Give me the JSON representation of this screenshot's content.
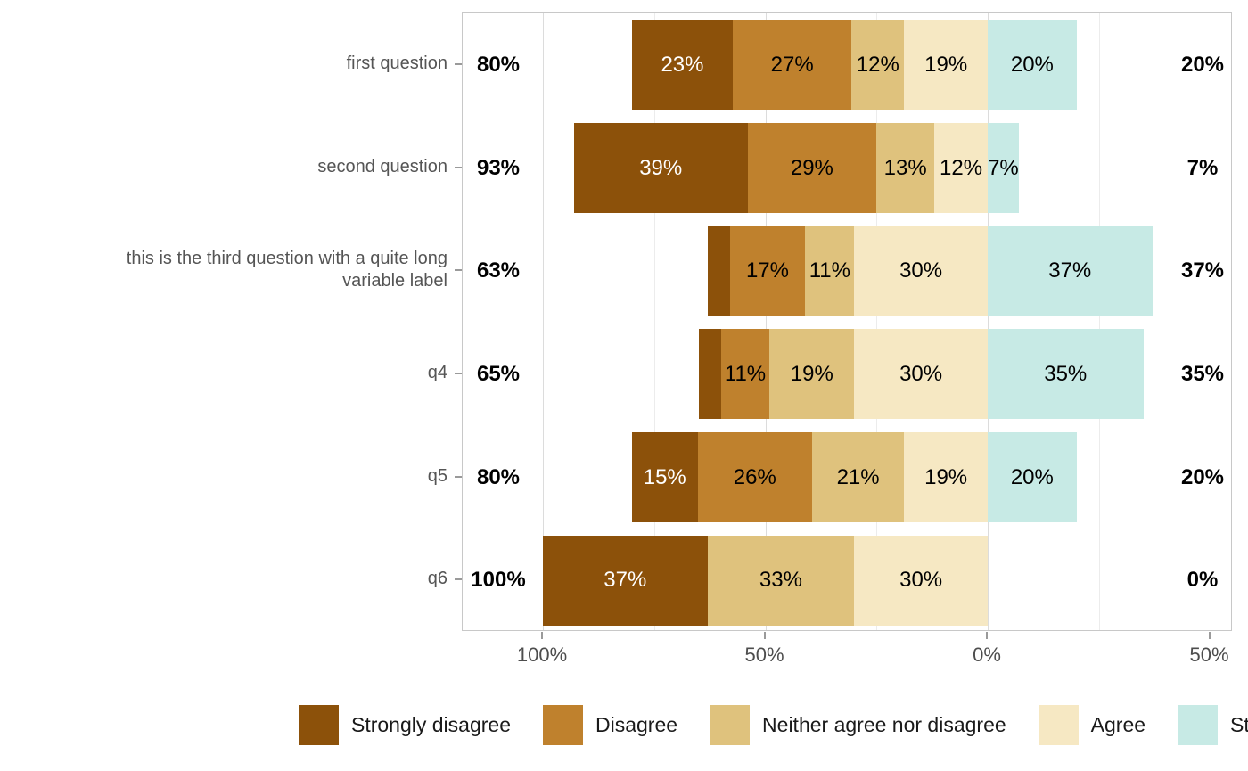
{
  "chart_data": {
    "type": "bar",
    "subtype": "diverging-stacked-likert",
    "title": "",
    "categories": [
      "Strongly disagree",
      "Disagree",
      "Neither agree nor disagree",
      "Agree",
      "Strongly agree"
    ],
    "colors": [
      "#8C510A",
      "#BF812D",
      "#DFC27D",
      "#F6E8C3",
      "#C7EAE5"
    ],
    "label_text_colors": [
      "#ffffff",
      "#000000",
      "#000000",
      "#000000",
      "#000000"
    ],
    "questions": [
      "first question",
      "second question",
      "this is the third question with a quite long\nvariable label",
      "q4",
      "q5",
      "q6"
    ],
    "rows": [
      {
        "question": "first question",
        "left_total": 80,
        "left_total_label": "80%",
        "right_total": 20,
        "right_total_label": "20%",
        "left_segments": [
          {
            "category": "Strongly disagree",
            "value": 23,
            "label": "23%"
          },
          {
            "category": "Disagree",
            "value": 27,
            "label": "27%"
          },
          {
            "category": "Neither agree nor disagree",
            "value": 12,
            "label": "12%"
          },
          {
            "category": "Agree",
            "value": 19,
            "label": "19%"
          }
        ],
        "right_segments": [
          {
            "category": "Strongly agree",
            "value": 20,
            "label": "20%"
          }
        ]
      },
      {
        "question": "second question",
        "left_total": 93,
        "left_total_label": "93%",
        "right_total": 7,
        "right_total_label": "7%",
        "left_segments": [
          {
            "category": "Strongly disagree",
            "value": 39,
            "label": "39%"
          },
          {
            "category": "Disagree",
            "value": 29,
            "label": "29%"
          },
          {
            "category": "Neither agree nor disagree",
            "value": 13,
            "label": "13%"
          },
          {
            "category": "Agree",
            "value": 12,
            "label": "12%"
          }
        ],
        "right_segments": [
          {
            "category": "Strongly agree",
            "value": 7,
            "label": "7%"
          }
        ]
      },
      {
        "question": "this is the third question with a quite long\nvariable label",
        "left_total": 63,
        "left_total_label": "63%",
        "right_total": 37,
        "right_total_label": "37%",
        "left_segments": [
          {
            "category": "Strongly disagree",
            "value": 5,
            "label": ""
          },
          {
            "category": "Disagree",
            "value": 17,
            "label": "17%"
          },
          {
            "category": "Neither agree nor disagree",
            "value": 11,
            "label": "11%"
          },
          {
            "category": "Agree",
            "value": 30,
            "label": "30%"
          }
        ],
        "right_segments": [
          {
            "category": "Strongly agree",
            "value": 37,
            "label": "37%"
          }
        ]
      },
      {
        "question": "q4",
        "left_total": 65,
        "left_total_label": "65%",
        "right_total": 35,
        "right_total_label": "35%",
        "left_segments": [
          {
            "category": "Strongly disagree",
            "value": 5,
            "label": ""
          },
          {
            "category": "Disagree",
            "value": 11,
            "label": "11%"
          },
          {
            "category": "Neither agree nor disagree",
            "value": 19,
            "label": "19%"
          },
          {
            "category": "Agree",
            "value": 30,
            "label": "30%"
          }
        ],
        "right_segments": [
          {
            "category": "Strongly agree",
            "value": 35,
            "label": "35%"
          }
        ]
      },
      {
        "question": "q5",
        "left_total": 80,
        "left_total_label": "80%",
        "right_total": 20,
        "right_total_label": "20%",
        "left_segments": [
          {
            "category": "Strongly disagree",
            "value": 15,
            "label": "15%"
          },
          {
            "category": "Disagree",
            "value": 26,
            "label": "26%"
          },
          {
            "category": "Neither agree nor disagree",
            "value": 21,
            "label": "21%"
          },
          {
            "category": "Agree",
            "value": 19,
            "label": "19%"
          }
        ],
        "right_segments": [
          {
            "category": "Strongly agree",
            "value": 20,
            "label": "20%"
          }
        ]
      },
      {
        "question": "q6",
        "left_total": 100,
        "left_total_label": "100%",
        "right_total": 0,
        "right_total_label": "0%",
        "left_segments": [
          {
            "category": "Strongly disagree",
            "value": 37,
            "label": "37%"
          },
          {
            "category": "Neither agree nor disagree",
            "value": 33,
            "label": "33%"
          },
          {
            "category": "Agree",
            "value": 30,
            "label": "30%"
          }
        ],
        "right_segments": []
      }
    ],
    "x_axis": {
      "tick_values": [
        100,
        50,
        0,
        -50
      ],
      "tick_labels": [
        "100%",
        "50%",
        "0%",
        "50%"
      ],
      "minor_values": [
        75,
        25,
        -25
      ],
      "grid": true
    },
    "legend": {
      "position": "bottom",
      "items": [
        "Strongly disagree",
        "Disagree",
        "Neither agree nor disagree",
        "Agree",
        "Strongly agree"
      ]
    }
  }
}
